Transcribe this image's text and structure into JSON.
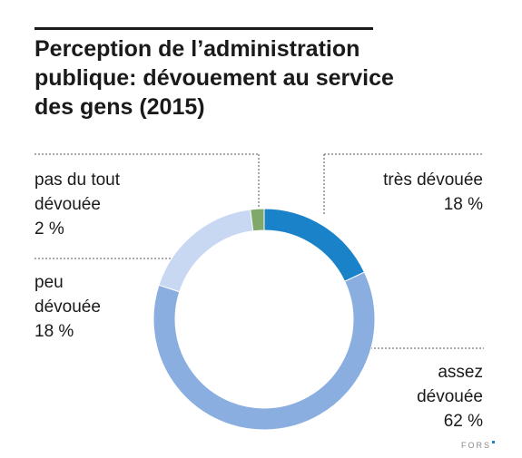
{
  "header": {
    "title_lines": [
      "Perception de l’administration",
      "publique: dévouement au service",
      "des gens (2015)"
    ]
  },
  "chart_data": {
    "type": "pie",
    "donut": true,
    "title": "Perception de l’administration publique: dévouement au service des gens (2015)",
    "slices": [
      {
        "label": "très dévouée",
        "label_lines": [
          "très dévouée"
        ],
        "value": 18,
        "display": "18 %",
        "color": "#1a82c8"
      },
      {
        "label": "assez dévouée",
        "label_lines": [
          "assez",
          "dévouée"
        ],
        "value": 62,
        "display": "62 %",
        "color": "#8aaee0"
      },
      {
        "label": "peu dévouée",
        "label_lines": [
          "peu",
          "dévouée"
        ],
        "value": 18,
        "display": "18 %",
        "color": "#c9d8f2"
      },
      {
        "label": "pas du tout dévouée",
        "label_lines": [
          "pas du tout",
          "dévouée"
        ],
        "value": 2,
        "display": "2 %",
        "color": "#7fa86a"
      }
    ]
  },
  "branding": {
    "source_logo": "FORS",
    "accent_color": "#1a82c8"
  }
}
